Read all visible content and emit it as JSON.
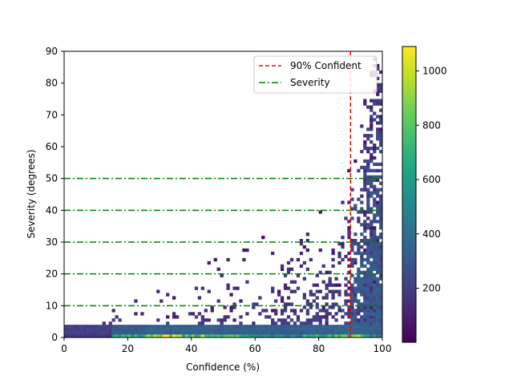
{
  "chart_data": {
    "type": "heatmap",
    "title": "",
    "xlabel": "Confidence (%)",
    "ylabel": "Severity (degrees)",
    "xlim": [
      0,
      100
    ],
    "ylim": [
      0,
      90
    ],
    "xticks": [
      0,
      20,
      40,
      60,
      80,
      100
    ],
    "yticks": [
      0,
      10,
      20,
      30,
      40,
      50,
      60,
      70,
      80,
      90
    ],
    "grid": false,
    "colormap": "viridis",
    "colorbar": {
      "vmin": 1,
      "vmax": 1090,
      "ticks": [
        200,
        400,
        600,
        800,
        1000
      ]
    },
    "reference_lines": {
      "vertical": {
        "name": "90% Confident",
        "x": 90,
        "color": "#ff0000",
        "style": "dashed"
      },
      "horizontal": {
        "name": "Severity",
        "y": [
          10,
          20,
          30,
          40,
          50
        ],
        "color": "#008000",
        "style": "dashdot"
      }
    },
    "legend": {
      "position": "top-right",
      "entries": [
        "90% Confident",
        "Severity"
      ]
    },
    "density_summary": {
      "note_cells": "approximate bin counts read from color",
      "hot_band": [
        {
          "x": 10,
          "y": 0,
          "count": 150
        },
        {
          "x": 20,
          "y": 0,
          "count": 700
        },
        {
          "x": 30,
          "y": 0,
          "count": 1000
        },
        {
          "x": 40,
          "y": 0,
          "count": 850
        },
        {
          "x": 50,
          "y": 0,
          "count": 700
        },
        {
          "x": 60,
          "y": 0,
          "count": 550
        },
        {
          "x": 70,
          "y": 0,
          "count": 500
        },
        {
          "x": 80,
          "y": 0,
          "count": 650
        },
        {
          "x": 90,
          "y": 0,
          "count": 800
        },
        {
          "x": 98,
          "y": 0,
          "count": 500
        },
        {
          "x": 98,
          "y": 2,
          "count": 350
        }
      ]
    }
  }
}
